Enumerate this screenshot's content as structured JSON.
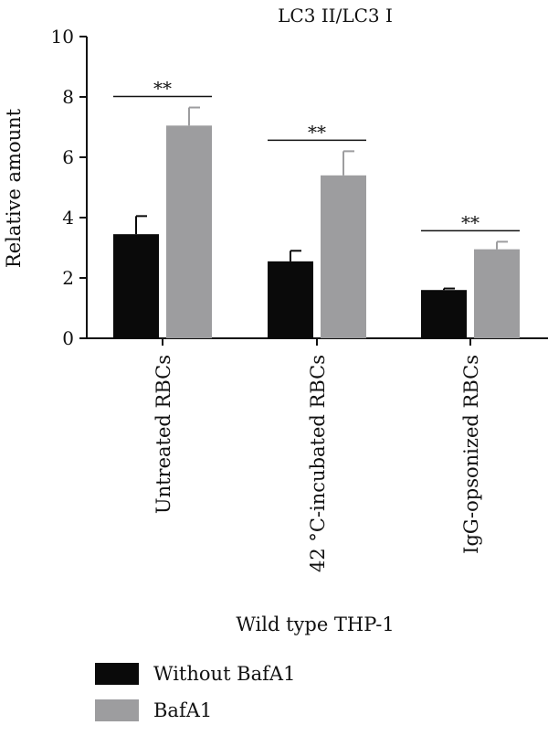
{
  "chart_data": {
    "type": "bar",
    "title": "LC3 II/LC3 I",
    "xlabel": "Wild type THP-1",
    "ylabel": "Relative amount",
    "ylim": [
      0,
      10
    ],
    "yticks": [
      0,
      2,
      4,
      6,
      8,
      10
    ],
    "categories": [
      "Untreated RBCs",
      "42 °C-incubated RBCs",
      "IgG-opsonized RBCs"
    ],
    "series": [
      {
        "name": "Without BafA1",
        "color": "#0a0a0a",
        "values": [
          3.45,
          2.55,
          1.6
        ],
        "errors": [
          0.6,
          0.35,
          0.05
        ]
      },
      {
        "name": "BafA1",
        "color": "#9d9d9f",
        "values": [
          7.05,
          5.4,
          2.95
        ],
        "errors": [
          0.6,
          0.8,
          0.25
        ]
      }
    ],
    "significance": [
      "**",
      "**",
      "**"
    ],
    "grid": false,
    "legend_position": "bottom-left"
  }
}
